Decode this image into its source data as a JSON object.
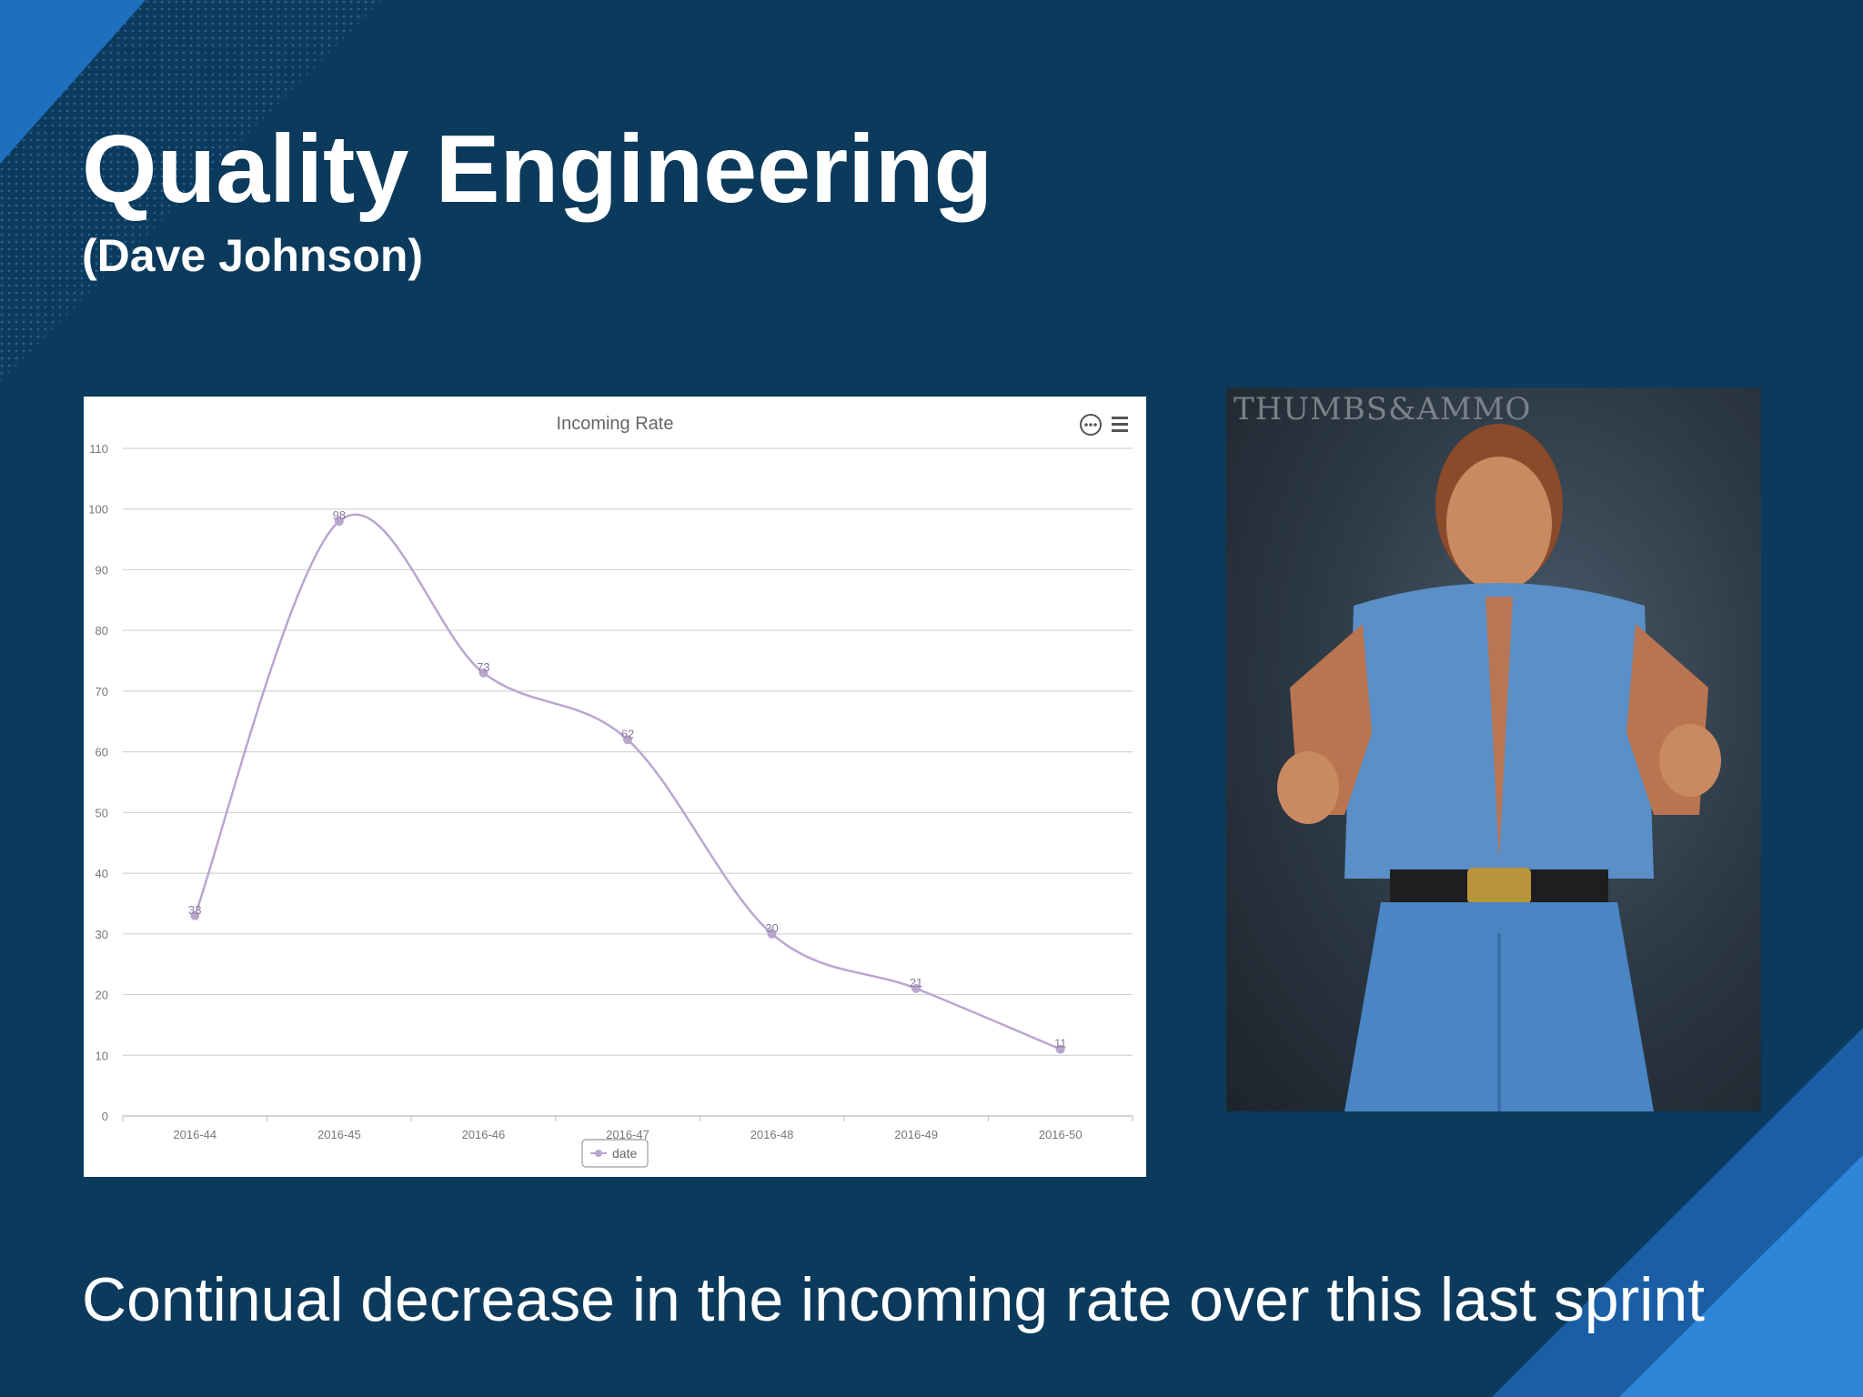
{
  "slide": {
    "title": "Quality Engineering",
    "subtitle": "(Dave Johnson)",
    "caption": "Continual decrease in the incoming rate over this last sprint",
    "background_color": "#0b3a5c",
    "accent_color": "#1a6ab4"
  },
  "chart_toolbar": {
    "context_icon": "circle-ellipsis-icon",
    "menu_icon": "hamburger-menu-icon"
  },
  "photo": {
    "watermark": "THUMBS&AMMO",
    "description_icon": "person-thumbs-up-photo"
  },
  "chart_data": {
    "type": "line",
    "title": "Incoming Rate",
    "categories": [
      "2016-44",
      "2016-45",
      "2016-46",
      "2016-47",
      "2016-48",
      "2016-49",
      "2016-50"
    ],
    "series": [
      {
        "name": "date",
        "values": [
          33,
          98,
          73,
          62,
          30,
          21,
          11
        ],
        "color": "#b9a6cf"
      }
    ],
    "ylim": [
      0,
      110
    ],
    "yticks": [
      0,
      10,
      20,
      30,
      40,
      50,
      60,
      70,
      80,
      90,
      100,
      110
    ],
    "smooth": true,
    "data_labels": true,
    "grid": true,
    "legend_position": "bottom-center"
  }
}
